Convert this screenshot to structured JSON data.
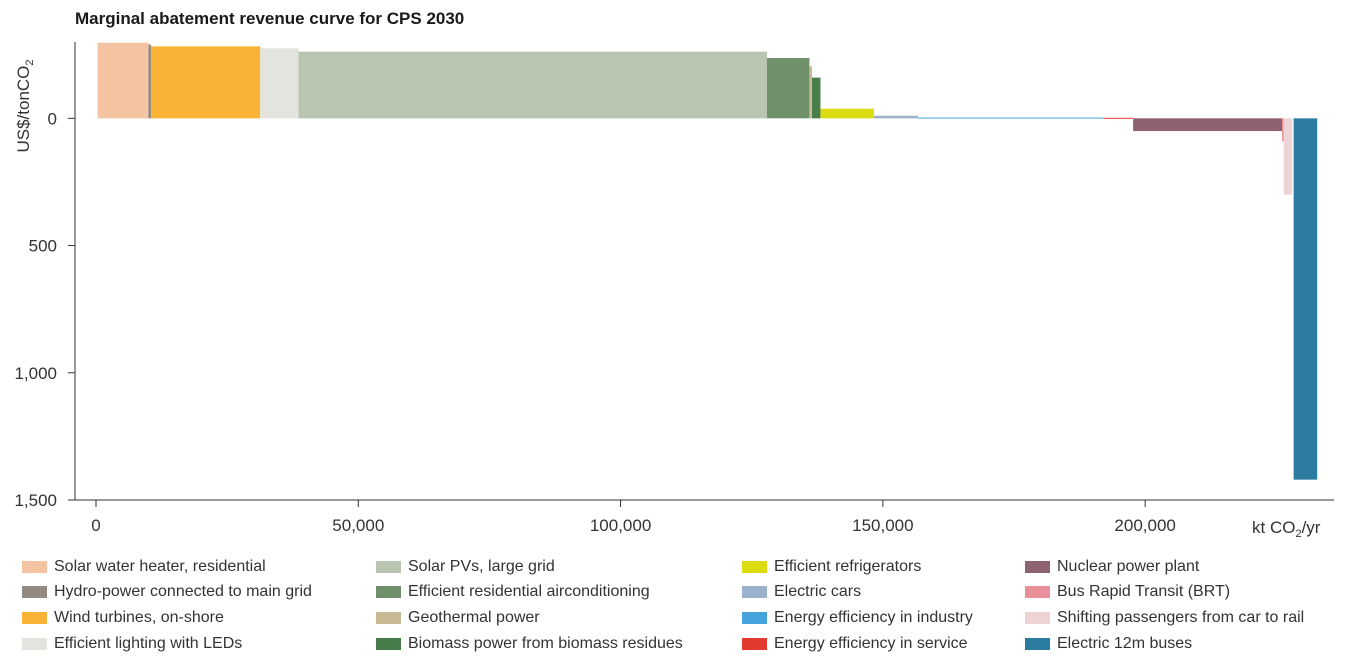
{
  "chart_data": {
    "type": "bar",
    "title": "Marginal abatement revenue curve for CPS 2030",
    "ylabel": "US$/tonCO2",
    "ylabel_parts": [
      "US$/tonCO",
      "2"
    ],
    "xlabel": "kt CO2/yr",
    "xlabel_parts": [
      "kt CO",
      "2",
      "/yr"
    ],
    "xlim": [
      0,
      236000
    ],
    "ylim": [
      -300,
      1500
    ],
    "y_inverted": true,
    "x_ticks": [
      {
        "value": 0,
        "label": "0"
      },
      {
        "value": 50000,
        "label": "50,000"
      },
      {
        "value": 100000,
        "label": "100,000"
      },
      {
        "value": 150000,
        "label": "150,000"
      },
      {
        "value": 200000,
        "label": "200,000"
      }
    ],
    "y_ticks": [
      {
        "value": 0,
        "label": "0"
      },
      {
        "value": 500,
        "label": "500"
      },
      {
        "value": 1000,
        "label": "1,000"
      },
      {
        "value": 1500,
        "label": "1,500"
      }
    ],
    "grid": false,
    "legend_position": "bottom",
    "series": [
      {
        "name": "Solar water heater, residential",
        "x_start": 300,
        "width": 9700,
        "value": -297,
        "color": "#f4c3a1"
      },
      {
        "name": "Hydro-power connected to main grid",
        "x_start": 10000,
        "width": 500,
        "value": -290,
        "color": "#948a84"
      },
      {
        "name": "Wind turbines, on-shore",
        "x_start": 10500,
        "width": 20800,
        "value": -283,
        "color": "#f9b336"
      },
      {
        "name": "Efficient lighting with LEDs",
        "x_start": 31300,
        "width": 7300,
        "value": -275,
        "color": "#e2e4dd"
      },
      {
        "name": "Solar PVs, large grid",
        "x_start": 38600,
        "width": 89300,
        "value": -262,
        "color": "#b9c5b1"
      },
      {
        "name": "Efficient residential airconditioning",
        "x_start": 127900,
        "width": 8100,
        "value": -237,
        "color": "#708f6b"
      },
      {
        "name": "Geothermal power",
        "x_start": 136000,
        "width": 500,
        "value": -205,
        "color": "#c8bb94"
      },
      {
        "name": "Biomass power from biomass residues",
        "x_start": 136500,
        "width": 1600,
        "value": -160,
        "color": "#467d4a"
      },
      {
        "name": "Efficient refrigerators",
        "x_start": 138100,
        "width": 10200,
        "value": -38,
        "color": "#dddc12"
      },
      {
        "name": "Electric cars",
        "x_start": 148300,
        "width": 8400,
        "value": -10,
        "color": "#9cb1cc"
      },
      {
        "name": "Energy efficiency in industry",
        "x_start": 156700,
        "width": 35300,
        "value": -3,
        "color": "#45a4db"
      },
      {
        "name": "Energy efficiency in service",
        "x_start": 192000,
        "width": 5700,
        "value": -2,
        "color": "#e03a31"
      },
      {
        "name": "Nuclear power plant",
        "x_start": 197700,
        "width": 28400,
        "value": 50,
        "color": "#8e6270"
      },
      {
        "name": "Bus Rapid Transit (BRT)",
        "x_start": 226100,
        "width": 300,
        "value": 90,
        "color": "#e88f99"
      },
      {
        "name": "Shifting passengers from car to rail",
        "x_start": 226400,
        "width": 1600,
        "value": 300,
        "color": "#edd3d4"
      },
      {
        "name": "Electric 12m buses",
        "x_start": 228300,
        "width": 4500,
        "value": 1420,
        "color": "#2c7ca1"
      }
    ]
  }
}
